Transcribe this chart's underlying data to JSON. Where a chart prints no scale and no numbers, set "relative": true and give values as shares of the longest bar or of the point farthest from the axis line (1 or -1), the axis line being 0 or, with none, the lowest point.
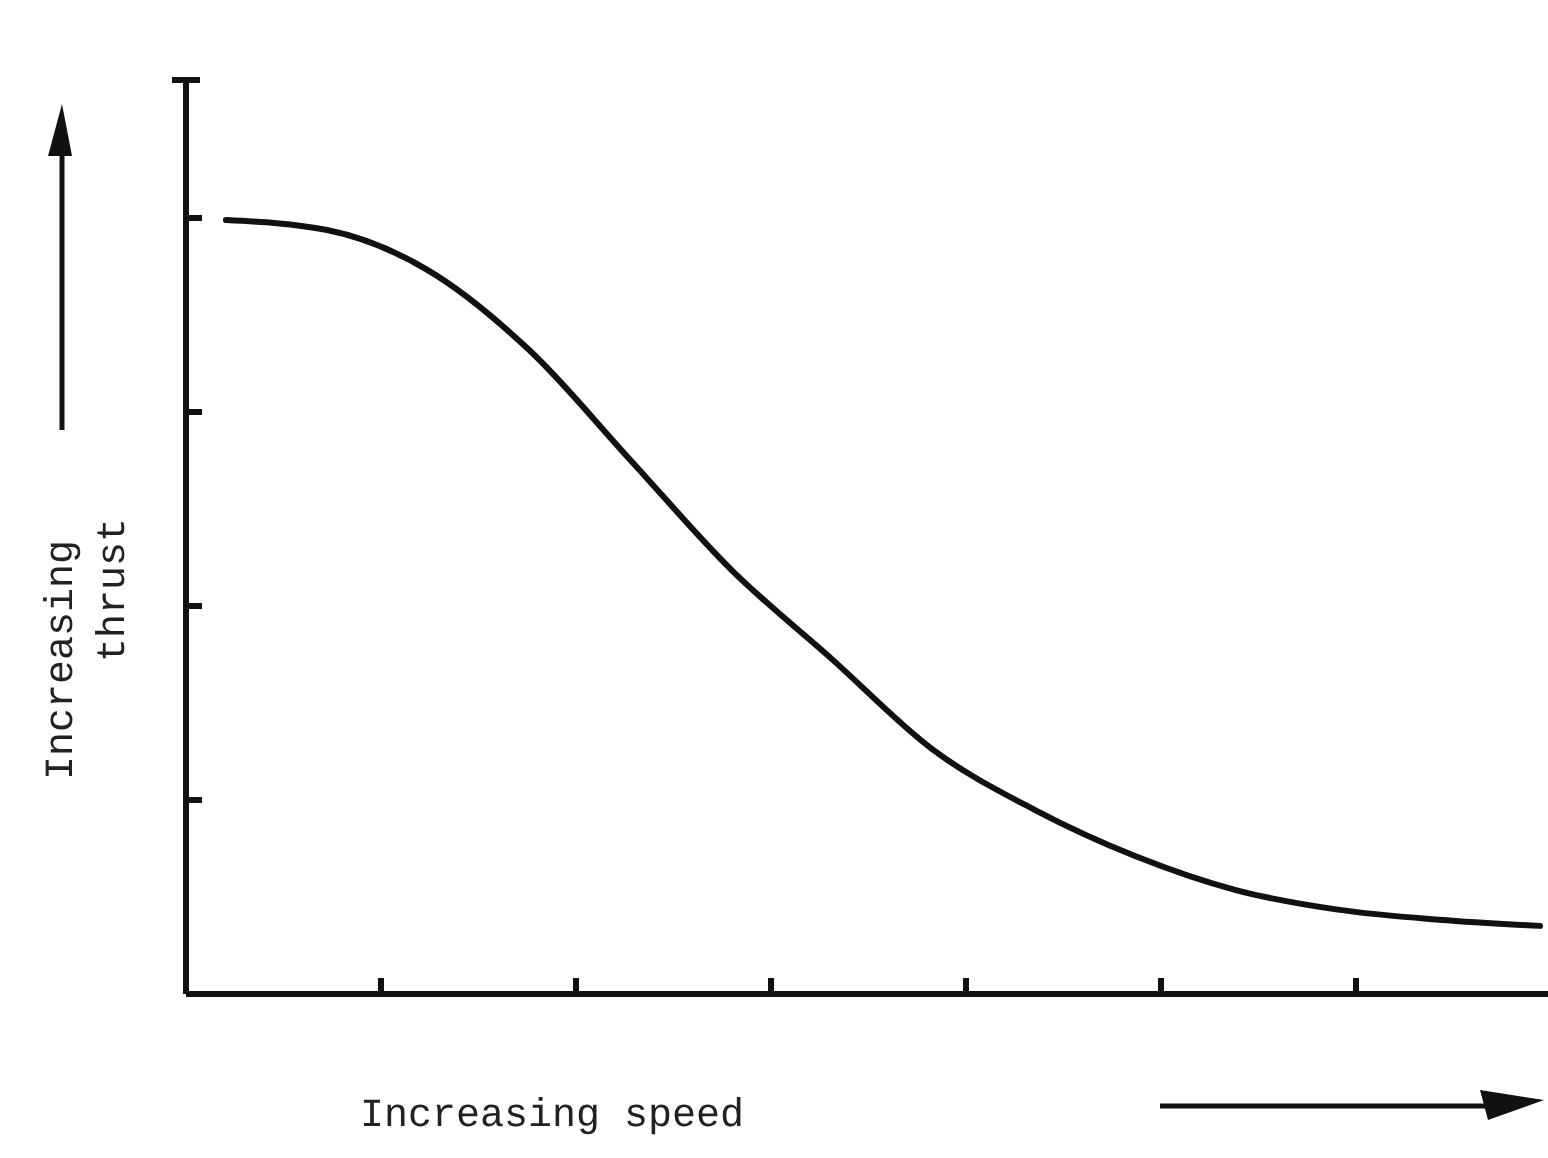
{
  "chart_data": {
    "type": "line",
    "relative": true,
    "xlabel": "Increasing speed",
    "ylabel": "Increasing thrust",
    "categories": [
      null,
      null,
      null,
      null,
      null,
      null,
      null,
      null,
      null,
      null,
      null,
      null,
      null,
      null
    ],
    "series": [
      {
        "color": "#111111",
        "values": [
          1,
          0.987,
          0.935,
          0.832,
          0.69,
          0.548,
          0.432,
          0.315,
          0.238,
          0.178,
          0.134,
          0.109,
          0.096,
          0.088
        ]
      }
    ],
    "marker": "none",
    "line_style": "solid"
  }
}
